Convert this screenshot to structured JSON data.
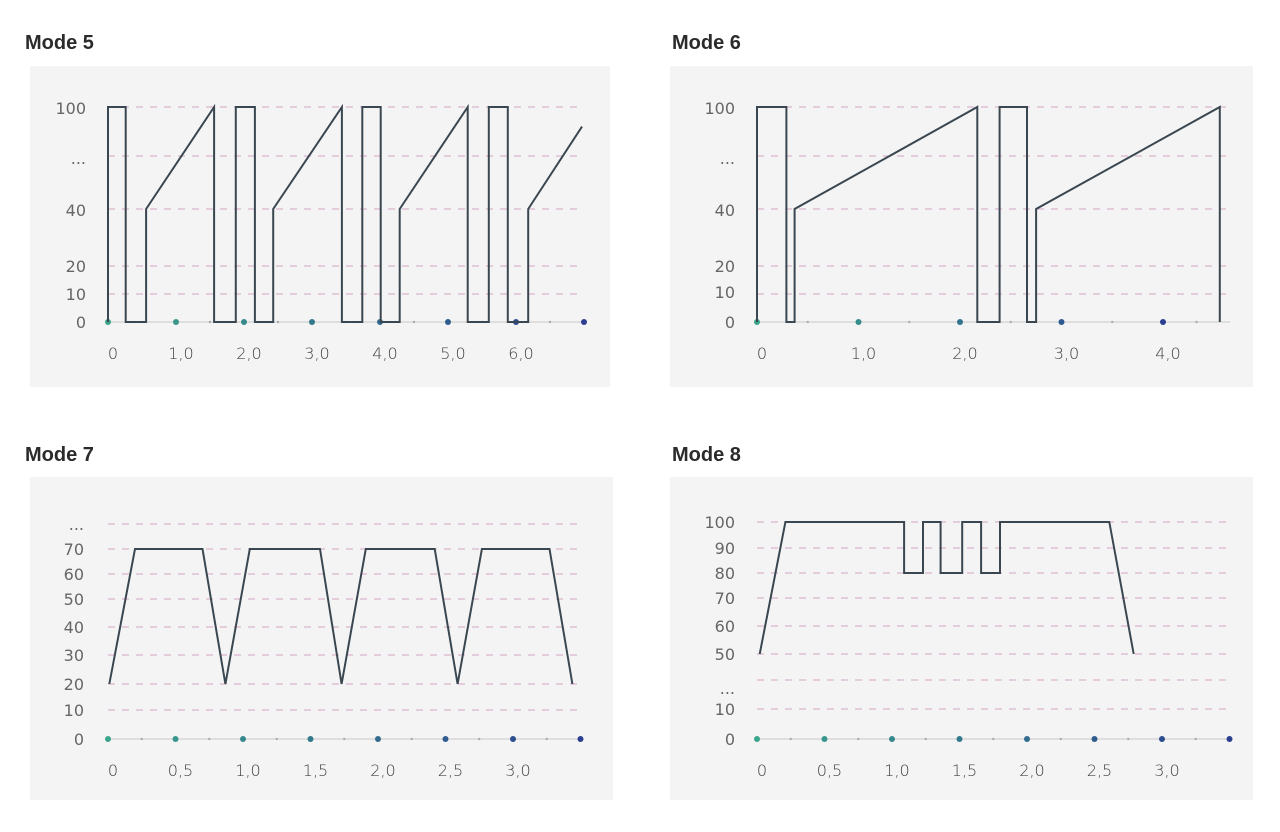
{
  "chart_data": [
    {
      "title": "Mode 5",
      "type": "line",
      "y_ticks": [
        "100",
        "...",
        "40",
        "20",
        "10",
        "0"
      ],
      "x_ticks": [
        "0",
        "1,0",
        "2,0",
        "3,0",
        "4,0",
        "5,0",
        "6,0"
      ],
      "x_tick_values": [
        0,
        1,
        2,
        3,
        4,
        5,
        6
      ],
      "grid": true,
      "points": [
        [
          0,
          0
        ],
        [
          0,
          100
        ],
        [
          0.26,
          100
        ],
        [
          0.26,
          0
        ],
        [
          0.56,
          0
        ],
        [
          0.56,
          40
        ],
        [
          1.56,
          100
        ],
        [
          1.56,
          0
        ],
        [
          1.88,
          0
        ],
        [
          1.88,
          100
        ],
        [
          2.16,
          100
        ],
        [
          2.16,
          0
        ],
        [
          2.43,
          0
        ],
        [
          2.43,
          40
        ],
        [
          3.44,
          100
        ],
        [
          3.44,
          0
        ],
        [
          3.74,
          0
        ],
        [
          3.74,
          100
        ],
        [
          4.01,
          100
        ],
        [
          4.01,
          0
        ],
        [
          4.29,
          0
        ],
        [
          4.29,
          40
        ],
        [
          5.29,
          100
        ],
        [
          5.29,
          0
        ],
        [
          5.6,
          0
        ],
        [
          5.6,
          100
        ],
        [
          5.88,
          100
        ],
        [
          5.88,
          0
        ],
        [
          6.18,
          0
        ],
        [
          6.18,
          40
        ],
        [
          6.97,
          88
        ]
      ]
    },
    {
      "title": "Mode 6",
      "type": "line",
      "y_ticks": [
        "100",
        "...",
        "40",
        "20",
        "10",
        "0"
      ],
      "x_ticks": [
        "0",
        "1,0",
        "2,0",
        "3,0",
        "4,0"
      ],
      "x_tick_values": [
        0,
        1,
        2,
        3,
        4
      ],
      "grid": true,
      "points": [
        [
          0,
          0
        ],
        [
          0,
          100
        ],
        [
          0.29,
          100
        ],
        [
          0.29,
          0
        ],
        [
          0.37,
          0
        ],
        [
          0.37,
          40
        ],
        [
          2.17,
          100
        ],
        [
          2.17,
          0
        ],
        [
          2.39,
          0
        ],
        [
          2.39,
          100
        ],
        [
          2.66,
          100
        ],
        [
          2.66,
          0
        ],
        [
          2.75,
          0
        ],
        [
          2.75,
          40
        ],
        [
          4.56,
          100
        ],
        [
          4.56,
          0
        ]
      ]
    },
    {
      "title": "Mode 7",
      "type": "line",
      "y_ticks": [
        "...",
        "70",
        "60",
        "50",
        "40",
        "30",
        "20",
        "10",
        "0"
      ],
      "x_ticks": [
        "0",
        "0,5",
        "1,0",
        "1,5",
        "2,0",
        "2,5",
        "3,0"
      ],
      "x_tick_values": [
        0,
        0.5,
        1,
        1.5,
        2,
        2.5,
        3
      ],
      "grid": true,
      "points": [
        [
          0.01,
          20
        ],
        [
          0.2,
          70
        ],
        [
          0.7,
          70
        ],
        [
          0.87,
          20
        ],
        [
          1.05,
          70
        ],
        [
          1.57,
          70
        ],
        [
          1.73,
          20
        ],
        [
          1.91,
          70
        ],
        [
          2.42,
          70
        ],
        [
          2.59,
          20
        ],
        [
          2.77,
          70
        ],
        [
          3.27,
          70
        ],
        [
          3.44,
          20
        ]
      ]
    },
    {
      "title": "Mode 8",
      "type": "line",
      "y_ticks": [
        "100",
        "90",
        "80",
        "70",
        "60",
        "50",
        "...",
        "10",
        "0"
      ],
      "x_ticks": [
        "0",
        "0,5",
        "1,0",
        "1,5",
        "2,0",
        "2,5",
        "3,0"
      ],
      "x_tick_values": [
        0,
        0.5,
        1,
        1.5,
        2,
        2.5,
        3
      ],
      "grid": true,
      "points": [
        [
          0.02,
          50
        ],
        [
          0.21,
          100
        ],
        [
          1.09,
          100
        ],
        [
          1.09,
          80
        ],
        [
          1.23,
          80
        ],
        [
          1.23,
          100
        ],
        [
          1.36,
          100
        ],
        [
          1.36,
          80
        ],
        [
          1.52,
          80
        ],
        [
          1.52,
          100
        ],
        [
          1.66,
          100
        ],
        [
          1.66,
          80
        ],
        [
          1.8,
          80
        ],
        [
          1.8,
          100
        ],
        [
          2.61,
          100
        ],
        [
          2.79,
          50
        ]
      ]
    }
  ],
  "colors": {
    "line": "#3a4750",
    "grid": "#d6a3c4",
    "axis": "#c8c8c8",
    "dot_start": "#3aa58a",
    "dot_end": "#2a3f8f"
  }
}
